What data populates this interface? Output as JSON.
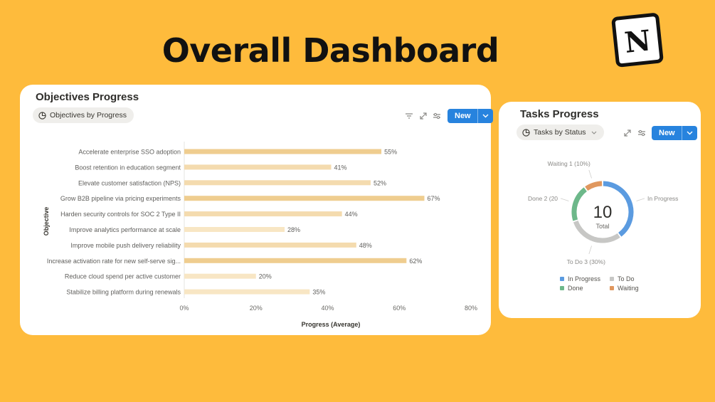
{
  "page": {
    "title": "Overall Dashboard"
  },
  "logo": {
    "icon": "notion-logo-icon",
    "letter": "N"
  },
  "objectives_card": {
    "title": "Objectives Progress",
    "view_pill": "Objectives by Progress",
    "new_label": "New",
    "toolbar_icons": [
      "filter-icon",
      "expand-icon",
      "settings-sliders-icon"
    ]
  },
  "tasks_card": {
    "title": "Tasks Progress",
    "view_pill": "Tasks by Status",
    "new_label": "New",
    "toolbar_icons": [
      "expand-icon",
      "settings-sliders-icon"
    ],
    "center_value": "10",
    "center_label": "Total"
  },
  "chart_data": [
    {
      "type": "bar",
      "orientation": "horizontal",
      "categories": [
        "Accelerate enterprise SSO adoption",
        "Boost retention in education segment",
        "Elevate customer satisfaction (NPS)",
        "Grow B2B pipeline via pricing experiments",
        "Harden security controls for SOC 2 Type II",
        "Improve analytics performance at scale",
        "Improve mobile push delivery reliability",
        "Increase activation rate for new self-serve sig...",
        "Reduce cloud spend per active customer",
        "Stabilize billing platform during renewals"
      ],
      "values": [
        55,
        41,
        52,
        67,
        44,
        28,
        48,
        62,
        20,
        35
      ],
      "data_labels": [
        "55%",
        "41%",
        "52%",
        "67%",
        "44%",
        "28%",
        "48%",
        "62%",
        "20%",
        "35%"
      ],
      "xlabel": "Progress (Average)",
      "ylabel": "Objective",
      "xlim": [
        0,
        80
      ],
      "x_ticks": [
        "0%",
        "20%",
        "40%",
        "60%",
        "80%"
      ],
      "grid": false,
      "bar_colors": {
        "low": "#F8E6C4",
        "mid": "#F4DBAE",
        "high": "#EFCD8F"
      }
    },
    {
      "type": "pie",
      "variant": "donut",
      "categories": [
        "In Progress",
        "To Do",
        "Done",
        "Waiting"
      ],
      "values": [
        4,
        3,
        2,
        1
      ],
      "slice_labels": [
        "In Progress",
        "To Do 3 (30%)",
        "Done 2 (20",
        "Waiting 1 (10%)"
      ],
      "colors": [
        "#5B9BE0",
        "#C7C7C5",
        "#6DB88A",
        "#E0975E"
      ],
      "legend": [
        "In Progress",
        "To Do",
        "Done",
        "Waiting"
      ],
      "legend_position": "bottom"
    }
  ]
}
